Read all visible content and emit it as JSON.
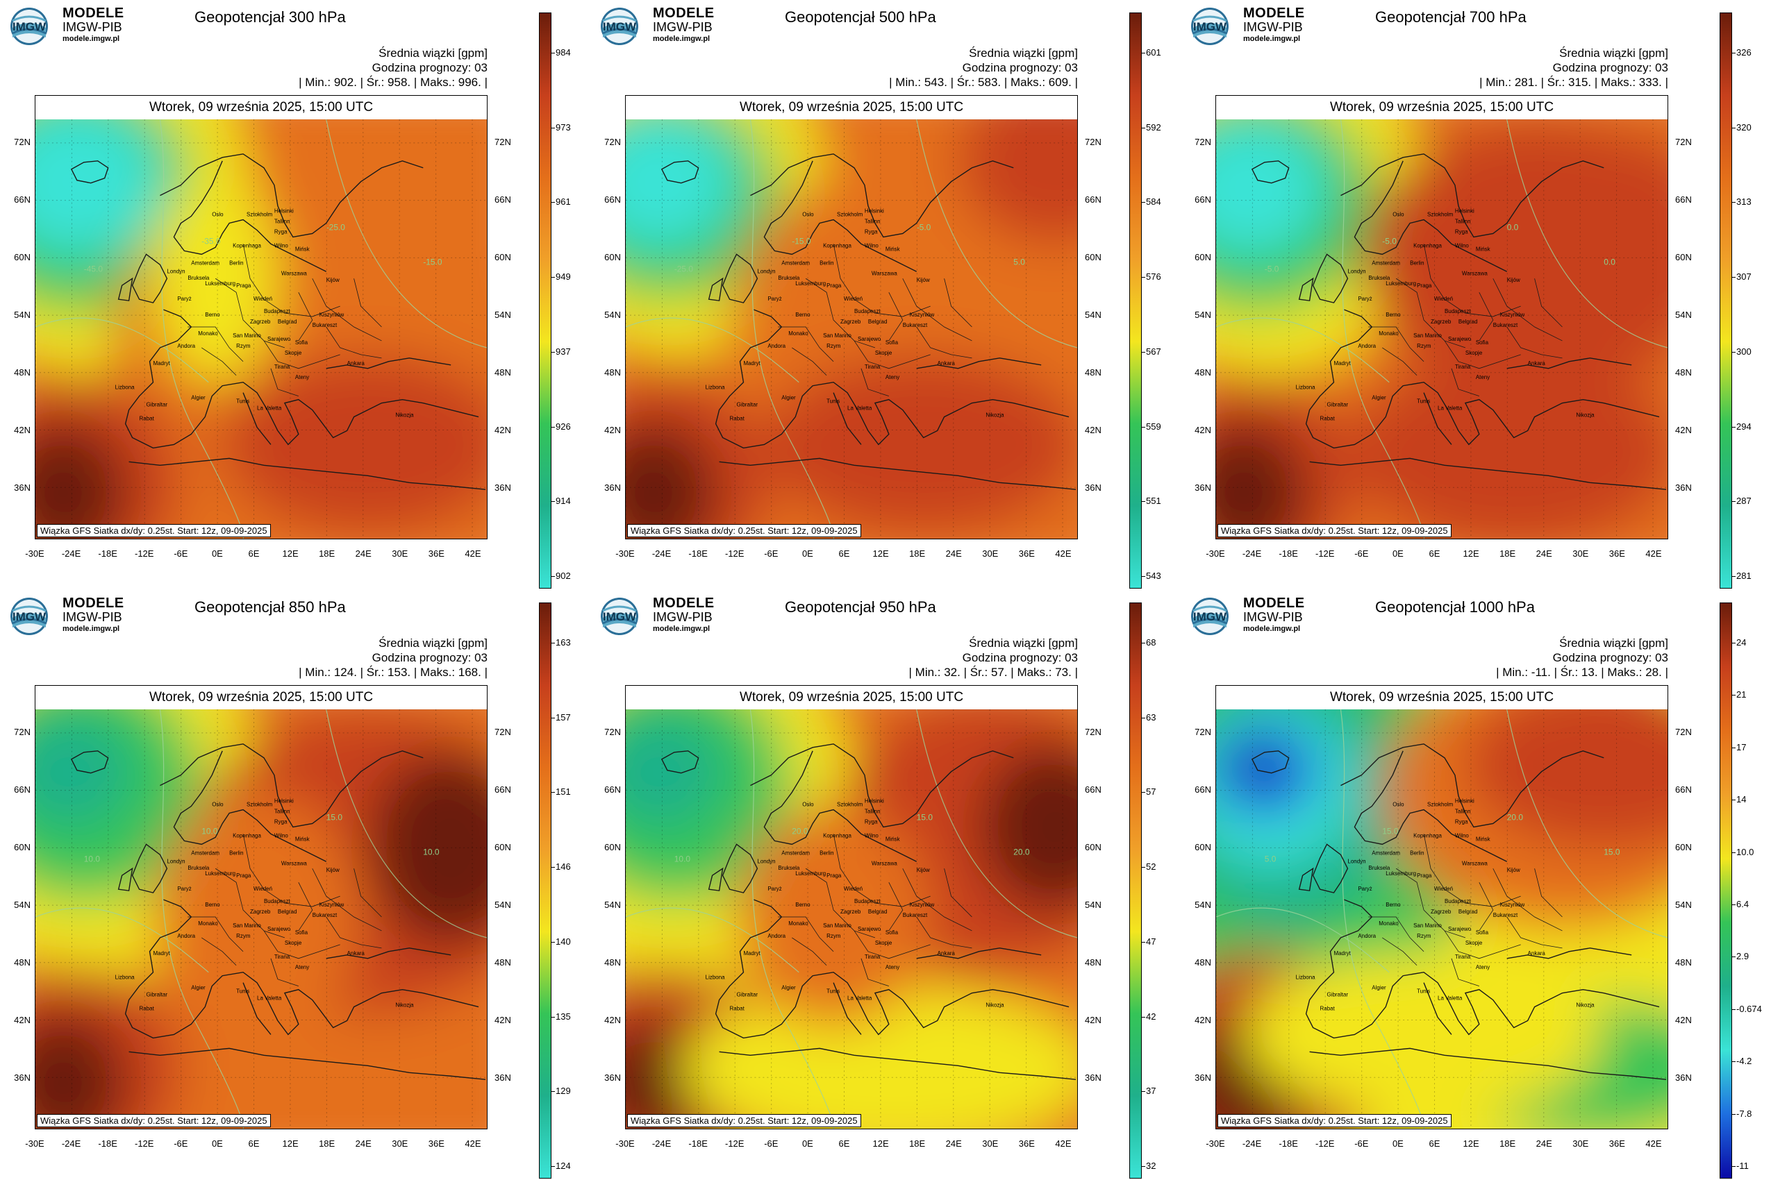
{
  "common": {
    "logo_brand": "MODELE",
    "logo_org": "IMGW-PIB",
    "logo_url": "modele.imgw.pl",
    "logo_mark": "IMGW",
    "unit_line": "Średnia wiązki [gpm]",
    "forecast_hour": "Godzina prognozy: 03",
    "date_line": "Wtorek, 09 września 2025, 15:00 UTC",
    "footnote": "Wiązka GFS Siatka dx/dy: 0.25st. Start: 12z, 09-09-2025",
    "lat_labels": [
      "72N",
      "66N",
      "60N",
      "54N",
      "48N",
      "42N",
      "36N"
    ],
    "lon_labels": [
      "-30E",
      "-24E",
      "-18E",
      "-12E",
      "-6E",
      "0E",
      "6E",
      "12E",
      "18E",
      "24E",
      "30E",
      "36E",
      "42E"
    ],
    "cities": [
      "Oslo",
      "Sztokholm",
      "Helsinki",
      "Tallinn",
      "Ryga",
      "Wilno",
      "Mińsk",
      "Kopenhaga",
      "Amsterdam",
      "Berlin",
      "Londyn",
      "Bruksela",
      "Luksemburg",
      "Paryż",
      "Praga",
      "Warszawa",
      "Kijów",
      "Wiedeń",
      "Berno",
      "Budapeszt",
      "Kiszyniów",
      "Zagrzeb",
      "Belgrad",
      "Bukareszt",
      "Monako",
      "San Marino",
      "Sarajewo",
      "Rzym",
      "Sofia",
      "Skopje",
      "Andora",
      "Madryt",
      "Lizbona",
      "Tirana",
      "Ateny",
      "Ankara",
      "Algier",
      "Tunis",
      "La Valetta",
      "Gibraltar",
      "Rabat",
      "Nikozja"
    ]
  },
  "panels": [
    {
      "title": "Geopotencjał 300 hPa",
      "stats": "| Min.: 902. | Śr.: 958. | Maks.: 996. |",
      "colorbar_ticks": [
        "984",
        "973",
        "961",
        "949",
        "937",
        "926",
        "914",
        "902"
      ],
      "contour_labels": [
        "-45.0",
        "-35.0",
        "-25.0",
        "-15.0"
      ]
    },
    {
      "title": "Geopotencjał 500 hPa",
      "stats": "| Min.: 543. | Śr.: 583. | Maks.: 609. |",
      "colorbar_ticks": [
        "601",
        "592",
        "584",
        "576",
        "567",
        "559",
        "551",
        "543"
      ],
      "contour_labels": [
        "-25.0",
        "-15.0",
        "-5.0",
        "5.0"
      ]
    },
    {
      "title": "Geopotencjał 700 hPa",
      "stats": "| Min.: 281. | Śr.: 315. | Maks.: 333. |",
      "colorbar_ticks": [
        "326",
        "320",
        "313",
        "307",
        "300",
        "294",
        "287",
        "281"
      ],
      "contour_labels": [
        "-5.0",
        "-5.0",
        "0.0",
        "0.0"
      ]
    },
    {
      "title": "Geopotencjał 850 hPa",
      "stats": "| Min.: 124. | Śr.: 153. | Maks.: 168. |",
      "colorbar_ticks": [
        "163",
        "157",
        "151",
        "146",
        "140",
        "135",
        "129",
        "124"
      ],
      "contour_labels": [
        "10.0",
        "10.0",
        "15.0",
        "10.0"
      ]
    },
    {
      "title": "Geopotencjał 950 hPa",
      "stats": "| Min.: 32. | Śr.: 57. | Maks.: 73. |",
      "colorbar_ticks": [
        "68",
        "63",
        "57",
        "52",
        "47",
        "42",
        "37",
        "32"
      ],
      "contour_labels": [
        "10.0",
        "20.0",
        "15.0",
        "20.0"
      ]
    },
    {
      "title": "Geopotencjał 1000 hPa",
      "stats": "| Min.: -11. | Śr.: 13. | Maks.: 28. |",
      "colorbar_ticks": [
        "24",
        "21",
        "17",
        "14",
        "10.0",
        "6.4",
        "2.9",
        "-0.674",
        "-4.2",
        "-7.8",
        "-11"
      ],
      "contour_labels": [
        "5.0",
        "15.0",
        "20.0",
        "15.0"
      ]
    }
  ],
  "colors": {
    "deep_red": "#6b1d0b",
    "red": "#c7401c",
    "orange": "#e46f1a",
    "light_orange": "#f0a029",
    "yellow": "#f3e61f",
    "green": "#35c457",
    "teal": "#1fb08b",
    "cyan": "#3be3d6",
    "blue": "#1e6fe0",
    "navy": "#0a0aa6"
  }
}
